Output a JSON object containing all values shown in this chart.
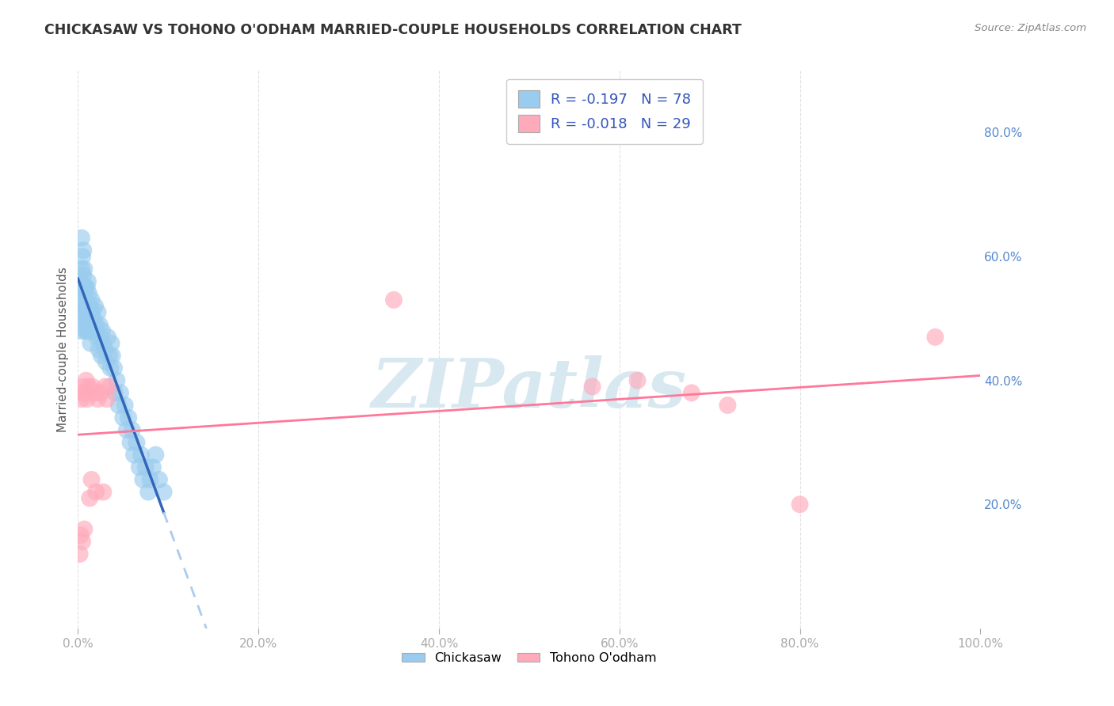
{
  "title": "CHICKASAW VS TOHONO O'ODHAM MARRIED-COUPLE HOUSEHOLDS CORRELATION CHART",
  "source": "Source: ZipAtlas.com",
  "ylabel": "Married-couple Households",
  "chickasaw_r": -0.197,
  "chickasaw_n": 78,
  "tohono_r": -0.018,
  "tohono_n": 29,
  "blue_scatter_color": "#99CCEE",
  "pink_scatter_color": "#FFAABB",
  "blue_line_color": "#3366BB",
  "pink_line_color": "#FF7799",
  "dashed_line_color": "#AACCEE",
  "watermark_color": "#D8E8F0",
  "background_color": "#FFFFFF",
  "grid_color": "#CCCCCC",
  "right_tick_color": "#5588CC",
  "title_color": "#333333",
  "source_color": "#888888",
  "legend_text_color": "#3355BB",
  "chickasaw_x": [
    0.001,
    0.002,
    0.002,
    0.003,
    0.003,
    0.003,
    0.004,
    0.004,
    0.005,
    0.005,
    0.005,
    0.006,
    0.006,
    0.006,
    0.007,
    0.007,
    0.007,
    0.008,
    0.008,
    0.008,
    0.009,
    0.009,
    0.01,
    0.01,
    0.01,
    0.011,
    0.011,
    0.012,
    0.012,
    0.013,
    0.013,
    0.014,
    0.014,
    0.015,
    0.015,
    0.016,
    0.017,
    0.018,
    0.019,
    0.02,
    0.021,
    0.022,
    0.023,
    0.024,
    0.025,
    0.026,
    0.027,
    0.028,
    0.03,
    0.031,
    0.033,
    0.035,
    0.036,
    0.037,
    0.038,
    0.04,
    0.041,
    0.043,
    0.045,
    0.047,
    0.05,
    0.052,
    0.054,
    0.056,
    0.058,
    0.06,
    0.062,
    0.065,
    0.068,
    0.07,
    0.072,
    0.075,
    0.078,
    0.08,
    0.083,
    0.086,
    0.09,
    0.095
  ],
  "chickasaw_y": [
    0.52,
    0.55,
    0.5,
    0.54,
    0.48,
    0.56,
    0.63,
    0.58,
    0.6,
    0.55,
    0.52,
    0.57,
    0.53,
    0.61,
    0.55,
    0.5,
    0.58,
    0.52,
    0.48,
    0.55,
    0.53,
    0.5,
    0.55,
    0.52,
    0.48,
    0.52,
    0.56,
    0.5,
    0.54,
    0.48,
    0.52,
    0.5,
    0.46,
    0.49,
    0.53,
    0.51,
    0.5,
    0.48,
    0.52,
    0.49,
    0.47,
    0.51,
    0.45,
    0.49,
    0.47,
    0.44,
    0.48,
    0.46,
    0.45,
    0.43,
    0.47,
    0.44,
    0.42,
    0.46,
    0.44,
    0.42,
    0.38,
    0.4,
    0.36,
    0.38,
    0.34,
    0.36,
    0.32,
    0.34,
    0.3,
    0.32,
    0.28,
    0.3,
    0.26,
    0.28,
    0.24,
    0.26,
    0.22,
    0.24,
    0.26,
    0.28,
    0.24,
    0.22
  ],
  "tohono_x": [
    0.002,
    0.003,
    0.004,
    0.005,
    0.005,
    0.006,
    0.007,
    0.008,
    0.009,
    0.01,
    0.012,
    0.013,
    0.015,
    0.016,
    0.018,
    0.02,
    0.022,
    0.025,
    0.028,
    0.03,
    0.032,
    0.035,
    0.35,
    0.57,
    0.62,
    0.68,
    0.72,
    0.8,
    0.95
  ],
  "tohono_y": [
    0.12,
    0.15,
    0.37,
    0.38,
    0.14,
    0.39,
    0.16,
    0.38,
    0.4,
    0.37,
    0.39,
    0.21,
    0.24,
    0.39,
    0.38,
    0.22,
    0.37,
    0.38,
    0.22,
    0.39,
    0.37,
    0.39,
    0.53,
    0.39,
    0.4,
    0.38,
    0.36,
    0.2,
    0.47
  ],
  "xlim_lo": 0.0,
  "xlim_hi": 1.0,
  "ylim_lo": 0.0,
  "ylim_hi": 0.9,
  "xticks": [
    0.0,
    0.2,
    0.4,
    0.6,
    0.8,
    1.0
  ],
  "xticklabels": [
    "0.0%",
    "20.0%",
    "40.0%",
    "60.0%",
    "80.0%",
    "100.0%"
  ],
  "yticks": [
    0.2,
    0.4,
    0.6,
    0.8
  ],
  "yticklabels": [
    "20.0%",
    "40.0%",
    "60.0%",
    "80.0%"
  ]
}
